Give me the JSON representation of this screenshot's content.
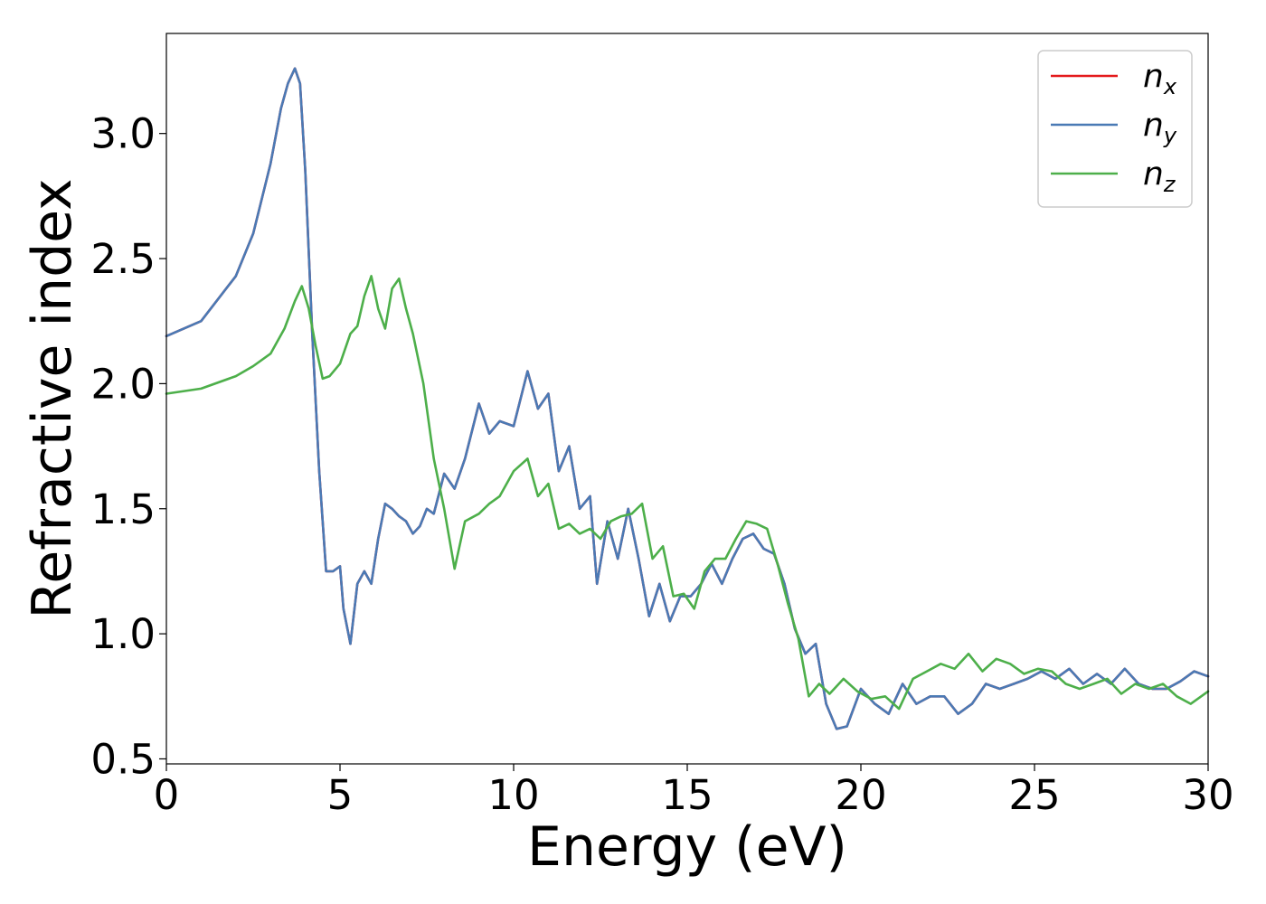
{
  "chart_data": {
    "type": "line",
    "xlabel": "Energy (eV)",
    "ylabel": "Refractive index",
    "xlim": [
      0,
      30
    ],
    "ylim": [
      0.48,
      3.4
    ],
    "xticks": [
      0,
      5,
      10,
      15,
      20,
      25,
      30
    ],
    "xtick_labels": [
      "0",
      "5",
      "10",
      "15",
      "20",
      "25",
      "30"
    ],
    "yticks": [
      0.5,
      1.0,
      1.5,
      2.0,
      2.5,
      3.0
    ],
    "ytick_labels": [
      "0.5",
      "1.0",
      "1.5",
      "2.0",
      "2.5",
      "3.0"
    ],
    "grid": false,
    "legend_position": "top-right",
    "series": [
      {
        "name": "n_x",
        "legend_base": "n",
        "legend_sub": "x",
        "color": "#e41a1c",
        "x": [
          0,
          1,
          2,
          2.5,
          3,
          3.3,
          3.5,
          3.7,
          3.85,
          4.0,
          4.2,
          4.4,
          4.6,
          4.8,
          5.0,
          5.1,
          5.3,
          5.5,
          5.7,
          5.9,
          6.1,
          6.3,
          6.5,
          6.7,
          6.9,
          7.1,
          7.3,
          7.5,
          7.7,
          8.0,
          8.3,
          8.6,
          9.0,
          9.3,
          9.6,
          10.0,
          10.4,
          10.7,
          11.0,
          11.3,
          11.6,
          11.9,
          12.2,
          12.4,
          12.7,
          13.0,
          13.3,
          13.6,
          13.9,
          14.2,
          14.5,
          14.8,
          15.1,
          15.4,
          15.7,
          16.0,
          16.3,
          16.6,
          16.9,
          17.2,
          17.5,
          17.8,
          18.1,
          18.4,
          18.7,
          19.0,
          19.3,
          19.6,
          20.0,
          20.4,
          20.8,
          21.2,
          21.6,
          22.0,
          22.4,
          22.8,
          23.2,
          23.6,
          24.0,
          24.4,
          24.8,
          25.2,
          25.6,
          26.0,
          26.4,
          26.8,
          27.2,
          27.6,
          28.0,
          28.4,
          28.8,
          29.2,
          29.6,
          30.0
        ],
        "y": [
          2.19,
          2.25,
          2.43,
          2.6,
          2.88,
          3.1,
          3.2,
          3.26,
          3.2,
          2.85,
          2.2,
          1.65,
          1.25,
          1.25,
          1.27,
          1.1,
          0.96,
          1.2,
          1.25,
          1.2,
          1.38,
          1.52,
          1.5,
          1.47,
          1.45,
          1.4,
          1.43,
          1.5,
          1.48,
          1.64,
          1.58,
          1.7,
          1.92,
          1.8,
          1.85,
          1.83,
          2.05,
          1.9,
          1.96,
          1.65,
          1.75,
          1.5,
          1.55,
          1.2,
          1.45,
          1.3,
          1.5,
          1.3,
          1.07,
          1.2,
          1.05,
          1.15,
          1.15,
          1.2,
          1.28,
          1.2,
          1.3,
          1.38,
          1.4,
          1.34,
          1.32,
          1.2,
          1.02,
          0.92,
          0.96,
          0.72,
          0.62,
          0.63,
          0.78,
          0.72,
          0.68,
          0.8,
          0.72,
          0.75,
          0.75,
          0.68,
          0.72,
          0.8,
          0.78,
          0.8,
          0.82,
          0.85,
          0.82,
          0.86,
          0.8,
          0.84,
          0.8,
          0.86,
          0.8,
          0.78,
          0.78,
          0.81,
          0.85,
          0.83
        ]
      },
      {
        "name": "n_y",
        "legend_base": "n",
        "legend_sub": "y",
        "color": "#4a7ab5",
        "x": [
          0,
          1,
          2,
          2.5,
          3,
          3.3,
          3.5,
          3.7,
          3.85,
          4.0,
          4.2,
          4.4,
          4.6,
          4.8,
          5.0,
          5.1,
          5.3,
          5.5,
          5.7,
          5.9,
          6.1,
          6.3,
          6.5,
          6.7,
          6.9,
          7.1,
          7.3,
          7.5,
          7.7,
          8.0,
          8.3,
          8.6,
          9.0,
          9.3,
          9.6,
          10.0,
          10.4,
          10.7,
          11.0,
          11.3,
          11.6,
          11.9,
          12.2,
          12.4,
          12.7,
          13.0,
          13.3,
          13.6,
          13.9,
          14.2,
          14.5,
          14.8,
          15.1,
          15.4,
          15.7,
          16.0,
          16.3,
          16.6,
          16.9,
          17.2,
          17.5,
          17.8,
          18.1,
          18.4,
          18.7,
          19.0,
          19.3,
          19.6,
          20.0,
          20.4,
          20.8,
          21.2,
          21.6,
          22.0,
          22.4,
          22.8,
          23.2,
          23.6,
          24.0,
          24.4,
          24.8,
          25.2,
          25.6,
          26.0,
          26.4,
          26.8,
          27.2,
          27.6,
          28.0,
          28.4,
          28.8,
          29.2,
          29.6,
          30.0
        ],
        "y": [
          2.19,
          2.25,
          2.43,
          2.6,
          2.88,
          3.1,
          3.2,
          3.26,
          3.2,
          2.85,
          2.2,
          1.65,
          1.25,
          1.25,
          1.27,
          1.1,
          0.96,
          1.2,
          1.25,
          1.2,
          1.38,
          1.52,
          1.5,
          1.47,
          1.45,
          1.4,
          1.43,
          1.5,
          1.48,
          1.64,
          1.58,
          1.7,
          1.92,
          1.8,
          1.85,
          1.83,
          2.05,
          1.9,
          1.96,
          1.65,
          1.75,
          1.5,
          1.55,
          1.2,
          1.45,
          1.3,
          1.5,
          1.3,
          1.07,
          1.2,
          1.05,
          1.15,
          1.15,
          1.2,
          1.28,
          1.2,
          1.3,
          1.38,
          1.4,
          1.34,
          1.32,
          1.2,
          1.02,
          0.92,
          0.96,
          0.72,
          0.62,
          0.63,
          0.78,
          0.72,
          0.68,
          0.8,
          0.72,
          0.75,
          0.75,
          0.68,
          0.72,
          0.8,
          0.78,
          0.8,
          0.82,
          0.85,
          0.82,
          0.86,
          0.8,
          0.84,
          0.8,
          0.86,
          0.8,
          0.78,
          0.78,
          0.81,
          0.85,
          0.83
        ]
      },
      {
        "name": "n_z",
        "legend_base": "n",
        "legend_sub": "z",
        "color": "#4daf4a",
        "x": [
          0,
          1,
          2,
          2.5,
          3,
          3.4,
          3.7,
          3.9,
          4.1,
          4.3,
          4.5,
          4.7,
          5.0,
          5.3,
          5.5,
          5.7,
          5.9,
          6.1,
          6.3,
          6.5,
          6.7,
          6.9,
          7.1,
          7.4,
          7.7,
          8.0,
          8.3,
          8.6,
          9.0,
          9.3,
          9.6,
          10.0,
          10.4,
          10.7,
          11.0,
          11.3,
          11.6,
          11.9,
          12.2,
          12.5,
          12.8,
          13.1,
          13.4,
          13.7,
          14.0,
          14.3,
          14.6,
          14.9,
          15.2,
          15.5,
          15.8,
          16.1,
          16.4,
          16.7,
          17.0,
          17.3,
          17.6,
          17.9,
          18.2,
          18.5,
          18.8,
          19.1,
          19.5,
          19.9,
          20.3,
          20.7,
          21.1,
          21.5,
          21.9,
          22.3,
          22.7,
          23.1,
          23.5,
          23.9,
          24.3,
          24.7,
          25.1,
          25.5,
          25.9,
          26.3,
          26.7,
          27.1,
          27.5,
          27.9,
          28.3,
          28.7,
          29.1,
          29.5,
          30.0
        ],
        "y": [
          1.96,
          1.98,
          2.03,
          2.07,
          2.12,
          2.22,
          2.33,
          2.39,
          2.3,
          2.15,
          2.02,
          2.03,
          2.08,
          2.2,
          2.23,
          2.35,
          2.43,
          2.3,
          2.22,
          2.38,
          2.42,
          2.3,
          2.2,
          2.0,
          1.7,
          1.5,
          1.26,
          1.45,
          1.48,
          1.52,
          1.55,
          1.65,
          1.7,
          1.55,
          1.6,
          1.42,
          1.44,
          1.4,
          1.42,
          1.38,
          1.45,
          1.47,
          1.48,
          1.52,
          1.3,
          1.35,
          1.15,
          1.16,
          1.1,
          1.25,
          1.3,
          1.3,
          1.38,
          1.45,
          1.44,
          1.42,
          1.28,
          1.12,
          0.98,
          0.75,
          0.8,
          0.76,
          0.82,
          0.77,
          0.74,
          0.75,
          0.7,
          0.82,
          0.85,
          0.88,
          0.86,
          0.92,
          0.85,
          0.9,
          0.88,
          0.84,
          0.86,
          0.85,
          0.8,
          0.78,
          0.8,
          0.82,
          0.76,
          0.8,
          0.78,
          0.8,
          0.75,
          0.72,
          0.77
        ]
      }
    ]
  }
}
